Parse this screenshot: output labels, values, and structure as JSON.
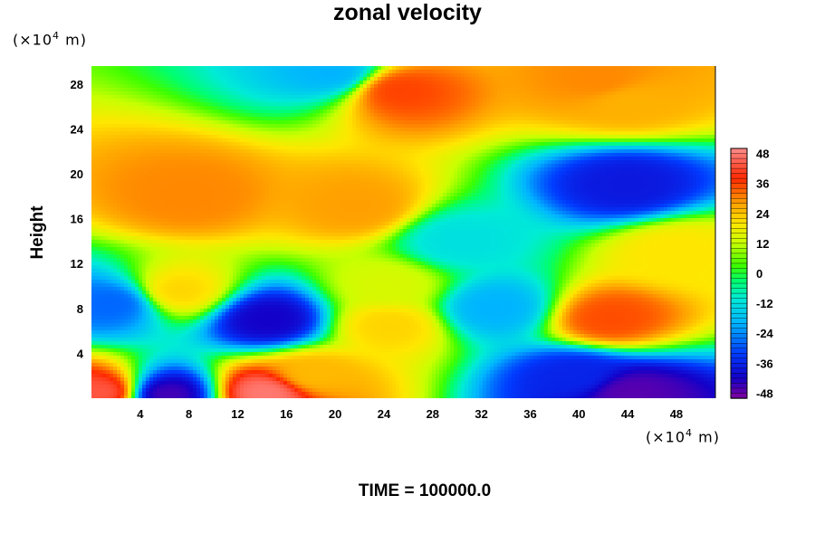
{
  "chart_data": {
    "type": "heatmap",
    "title": "zonal velocity",
    "ylabel": "Height",
    "xlabel": "",
    "y_unit_prefix": "(×10",
    "y_unit_exp": "4",
    "y_unit_suffix": " m)",
    "x_unit_prefix": "(×10",
    "x_unit_exp": "4",
    "x_unit_suffix": " m)",
    "xlim": [
      0,
      51.2
    ],
    "ylim": [
      0,
      29.6
    ],
    "xticks": [
      4,
      8,
      12,
      16,
      20,
      24,
      28,
      32,
      36,
      40,
      44,
      48
    ],
    "yticks": [
      4,
      8,
      12,
      16,
      20,
      24,
      28
    ],
    "colorbar": {
      "vmin": -50,
      "vmax": 50,
      "ticks": [
        48,
        36,
        24,
        12,
        0,
        -12,
        -24,
        -36,
        -48
      ]
    },
    "features": [
      {
        "x": 14.5,
        "y": 7,
        "value": -42
      },
      {
        "x": 42.5,
        "y": 7,
        "value": 35
      },
      {
        "x": 24.5,
        "y": 6.5,
        "value": 22
      },
      {
        "x": 24.5,
        "y": 10,
        "value": 14
      },
      {
        "x": 14.5,
        "y": 0.5,
        "value": 48
      },
      {
        "x": 1,
        "y": 0.5,
        "value": 44
      },
      {
        "x": 6,
        "y": 0.3,
        "value": -46
      },
      {
        "x": 44,
        "y": 0.5,
        "value": -47
      },
      {
        "x": 40,
        "y": 2,
        "value": -36
      },
      {
        "x": 2,
        "y": 8.5,
        "value": -28
      },
      {
        "x": 33,
        "y": 8,
        "value": -20
      },
      {
        "x": 18,
        "y": 2,
        "value": 25
      },
      {
        "x": 8,
        "y": 18,
        "value": 30
      },
      {
        "x": 22,
        "y": 17,
        "value": 28
      },
      {
        "x": 44,
        "y": 19,
        "value": -38
      },
      {
        "x": 48,
        "y": 13,
        "value": 20
      },
      {
        "x": 7,
        "y": 9.5,
        "value": 22
      },
      {
        "x": 30,
        "y": 14,
        "value": -12
      },
      {
        "x": 25,
        "y": 27.5,
        "value": 36
      },
      {
        "x": 42,
        "y": 28.2,
        "value": 30
      },
      {
        "x": 44,
        "y": 26.5,
        "value": 26
      },
      {
        "x": 20,
        "y": 29,
        "value": -20
      }
    ]
  },
  "footer": {
    "time_label": "TIME = ",
    "time_value": "100000.0"
  }
}
